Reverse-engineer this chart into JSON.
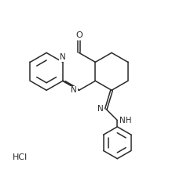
{
  "bg_color": "#ffffff",
  "line_color": "#2a2a2a",
  "text_color": "#2a2a2a",
  "hcl_text": "HCl",
  "o_label": "O",
  "n_label": "N",
  "nh_label": "NH",
  "fig_width": 2.38,
  "fig_height": 2.21,
  "dpi": 100,
  "lw": 1.1
}
